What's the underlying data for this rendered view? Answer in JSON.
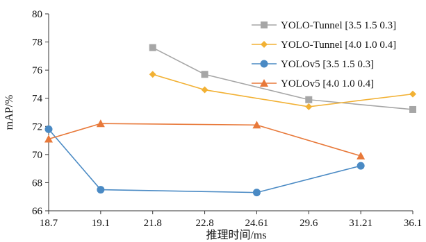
{
  "chart_data": {
    "type": "line",
    "title": "",
    "xlabel": "推理时间/ms",
    "ylabel": "mAP/%",
    "categories": [
      "18.7",
      "19.1",
      "21.8",
      "22.8",
      "24.61",
      "29.6",
      "31.21",
      "36.1"
    ],
    "ylim": [
      66,
      80
    ],
    "yticks": [
      66,
      68,
      70,
      72,
      74,
      76,
      78,
      80
    ],
    "grid": false,
    "legend_position": "top-right",
    "series": [
      {
        "name": "YOLO-Tunnel [3.5 1.5 0.3]",
        "color": "#a6a6a6",
        "marker": "square",
        "points": [
          {
            "x": "21.8",
            "y": 77.6
          },
          {
            "x": "22.8",
            "y": 75.7
          },
          {
            "x": "29.6",
            "y": 73.9
          },
          {
            "x": "36.1",
            "y": 73.2
          }
        ]
      },
      {
        "name": "YOLO-Tunnel [4.0 1.0 0.4]",
        "color": "#f2b134",
        "marker": "diamond",
        "points": [
          {
            "x": "21.8",
            "y": 75.7
          },
          {
            "x": "22.8",
            "y": 74.6
          },
          {
            "x": "29.6",
            "y": 73.4
          },
          {
            "x": "36.1",
            "y": 74.3
          }
        ]
      },
      {
        "name": "YOLOv5 [3.5 1.5 0.3]",
        "color": "#4a8ac4",
        "marker": "circle",
        "points": [
          {
            "x": "18.7",
            "y": 71.8
          },
          {
            "x": "19.1",
            "y": 67.5
          },
          {
            "x": "24.61",
            "y": 67.3
          },
          {
            "x": "31.21",
            "y": 69.2
          }
        ]
      },
      {
        "name": "YOLOv5 [4.0 1.0 0.4]",
        "color": "#e8793a",
        "marker": "triangle",
        "points": [
          {
            "x": "18.7",
            "y": 71.1
          },
          {
            "x": "19.1",
            "y": 72.2
          },
          {
            "x": "24.61",
            "y": 72.1
          },
          {
            "x": "31.21",
            "y": 69.9
          }
        ]
      }
    ]
  }
}
